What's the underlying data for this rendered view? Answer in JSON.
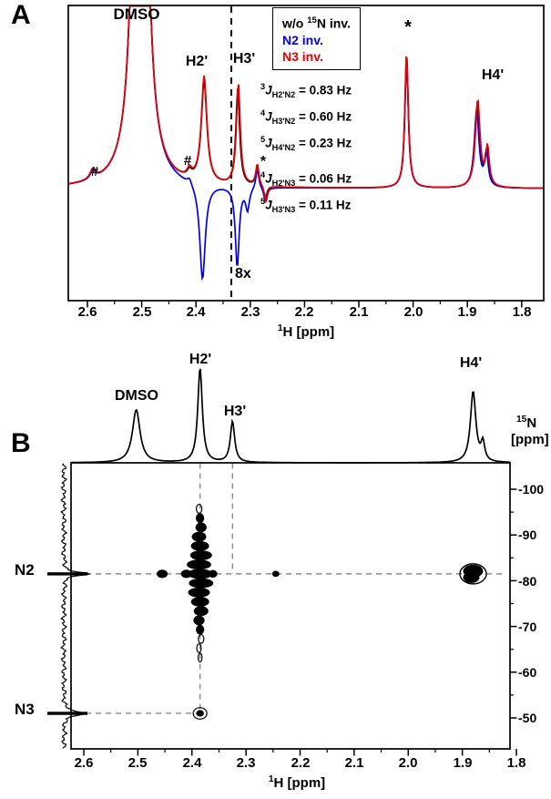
{
  "chart_data": [
    {
      "id": "panel-a",
      "type": "line",
      "panel_label": "A",
      "xlabel": "1H [ppm]",
      "xlabel_parts": {
        "sup": "1",
        "rest": "H [ppm]"
      },
      "x_ticks": [
        "2.6",
        "2.5",
        "2.4",
        "2.3",
        "2.2",
        "2.1",
        "2.0",
        "1.9",
        "1.8"
      ],
      "xlim": [
        2.635,
        1.76
      ],
      "x_axis_reversed": true,
      "scale_note": "8x",
      "scale_boundary_ppm": 2.335,
      "amplitude_unit": "relative display intensity; region right of 2.335 ppm shown at 8x vertical scale",
      "series": [
        {
          "name": "w/o 15N inv.",
          "color": "#000000",
          "peaks": [
            {
              "ppm": 2.59,
              "amp": 9,
              "w": 0.006
            },
            {
              "ppm": 2.503,
              "amp": 1400,
              "w": 0.008
            },
            {
              "ppm": 2.412,
              "amp": 7,
              "w": 0.005
            },
            {
              "ppm": 2.385,
              "amp": 111,
              "w": 0.0062
            },
            {
              "ppm": 2.323,
              "amp": 106,
              "w": 0.0042
            },
            {
              "ppm": 2.287,
              "amp": 20,
              "w": 0.0035
            },
            {
              "ppm": 2.272,
              "amp": -14,
              "w": 0.0035
            },
            {
              "ppm": 2.012,
              "amp": 146,
              "w": 0.0038
            },
            {
              "ppm": 1.882,
              "amp": 90,
              "w": 0.0052
            },
            {
              "ppm": 1.864,
              "amp": 38,
              "w": 0.004
            }
          ]
        },
        {
          "name": "N2 inv.",
          "color": "#0000ee",
          "peaks": [
            {
              "ppm": 2.59,
              "amp": 9,
              "w": 0.006
            },
            {
              "ppm": 2.503,
              "amp": 1400,
              "w": 0.008
            },
            {
              "ppm": 2.412,
              "amp": 7,
              "w": 0.005
            },
            {
              "ppm": 2.388,
              "amp": -106,
              "w": 0.0062
            },
            {
              "ppm": 2.324,
              "amp": -88,
              "w": 0.0042
            },
            {
              "ppm": 2.305,
              "amp": -24,
              "w": 0.004
            },
            {
              "ppm": 2.287,
              "amp": 22,
              "w": 0.0035
            },
            {
              "ppm": 2.272,
              "amp": -16,
              "w": 0.0035
            },
            {
              "ppm": 2.012,
              "amp": 144,
              "w": 0.0038
            },
            {
              "ppm": 1.883,
              "amp": 84,
              "w": 0.0052
            },
            {
              "ppm": 1.865,
              "amp": 36,
              "w": 0.004
            }
          ]
        },
        {
          "name": "N3 inv.",
          "color": "#e60000",
          "peaks": [
            {
              "ppm": 2.59,
              "amp": 11,
              "w": 0.006
            },
            {
              "ppm": 2.503,
              "amp": 1400,
              "w": 0.008
            },
            {
              "ppm": 2.412,
              "amp": 9,
              "w": 0.005
            },
            {
              "ppm": 2.385,
              "amp": 117,
              "w": 0.0062
            },
            {
              "ppm": 2.322,
              "amp": 112,
              "w": 0.0042
            },
            {
              "ppm": 2.287,
              "amp": 24,
              "w": 0.0035
            },
            {
              "ppm": 2.271,
              "amp": -18,
              "w": 0.0035
            },
            {
              "ppm": 2.012,
              "amp": 150,
              "w": 0.0038
            },
            {
              "ppm": 1.881,
              "amp": 96,
              "w": 0.0052
            },
            {
              "ppm": 1.863,
              "amp": 42,
              "w": 0.004
            }
          ]
        }
      ],
      "legend": [
        {
          "pre": "w/o ",
          "sup": "15",
          "post": "N inv.",
          "color": "#000000"
        },
        {
          "pre": "N2 inv.",
          "sup": "",
          "post": "",
          "color": "#0000ee"
        },
        {
          "pre": "N3 inv.",
          "sup": "",
          "post": "",
          "color": "#e60000"
        }
      ],
      "peak_labels": [
        {
          "text": "DMSO",
          "ppm": 2.503
        },
        {
          "text": "H2'",
          "ppm": 2.385
        },
        {
          "text": "H3'",
          "ppm": 2.323
        },
        {
          "text": "H4'",
          "ppm": 1.882
        },
        {
          "text": "*",
          "ppm": 2.012
        },
        {
          "text": "*",
          "ppm": 2.287
        },
        {
          "text": "#",
          "ppm": 2.59
        },
        {
          "text": "#",
          "ppm": 2.412
        }
      ],
      "couplings": [
        {
          "sup": "3",
          "j": "J",
          "sub": "H2'N2",
          "val": " = 0.83 Hz"
        },
        {
          "sup": "4",
          "j": "J",
          "sub": "H3'N2",
          "val": " = 0.60 Hz"
        },
        {
          "sup": "5",
          "j": "J",
          "sub": "H4'N2",
          "val": " = 0.23 Hz"
        },
        {
          "sup": "4",
          "j": "J",
          "sub": "H2'N3",
          "val": " = 0.06 Hz"
        },
        {
          "sup": "5",
          "j": "J",
          "sub": "H3'N3",
          "val": " = 0.11 Hz"
        }
      ]
    },
    {
      "id": "panel-b",
      "type": "heatmap",
      "panel_label": "B",
      "xlabel": "1H [ppm]",
      "xlabel_parts": {
        "sup": "1",
        "rest": "H [ppm]"
      },
      "ylabel": "15N [ppm]",
      "ylabel_parts": {
        "sup": "15",
        "post": "N",
        "unit": "[ppm]"
      },
      "x_ticks": [
        "2.6",
        "2.5",
        "2.4",
        "2.3",
        "2.2",
        "2.1",
        "2.0",
        "1.9",
        "1.8"
      ],
      "y_ticks": [
        "-100",
        "-90",
        "-80",
        "-70",
        "-60",
        "-50"
      ],
      "xlim": [
        2.62,
        1.79
      ],
      "ylim": [
        -105.5,
        -43
      ],
      "x_axis_reversed": true,
      "y_axis_reversed": true,
      "guide_color": "#8a8a8a",
      "top_trace": {
        "color": "#000000",
        "peaks": [
          {
            "ppm": 2.503,
            "amp": 58,
            "w": 0.0085,
            "label": "DMSO"
          },
          {
            "ppm": 2.385,
            "amp": 104,
            "w": 0.005,
            "label": "H2'"
          },
          {
            "ppm": 2.325,
            "amp": 45,
            "w": 0.0048,
            "label": "H3'"
          },
          {
            "ppm": 1.88,
            "amp": 78,
            "w": 0.006,
            "label": "H4'"
          },
          {
            "ppm": 1.862,
            "amp": 20,
            "w": 0.004
          }
        ]
      },
      "rows": [
        {
          "name": "N2",
          "n15_ppm": -81.5
        },
        {
          "name": "N3",
          "n15_ppm": -51
        }
      ],
      "cross_peaks": [
        {
          "h_ppm": 2.385,
          "n15_ppm": -81.5,
          "style": "t1_ridge"
        },
        {
          "h_ppm": 1.88,
          "n15_ppm": -81.5,
          "style": "strong"
        },
        {
          "h_ppm": 2.455,
          "n15_ppm": -81.5,
          "style": "medium"
        },
        {
          "h_ppm": 2.245,
          "n15_ppm": -81.5,
          "style": "dot"
        },
        {
          "h_ppm": 2.385,
          "n15_ppm": -51,
          "style": "weak"
        }
      ],
      "guides": [
        {
          "type": "h",
          "n15_ppm": -81.5,
          "from_ppm": 2.615,
          "to_ppm": 1.82
        },
        {
          "type": "h",
          "n15_ppm": -51,
          "from_ppm": 2.615,
          "to_ppm": 2.385
        },
        {
          "type": "v",
          "ppm": 2.385,
          "to_n15": -51
        },
        {
          "type": "v",
          "ppm": 2.325,
          "to_n15": -81.5
        }
      ]
    }
  ]
}
